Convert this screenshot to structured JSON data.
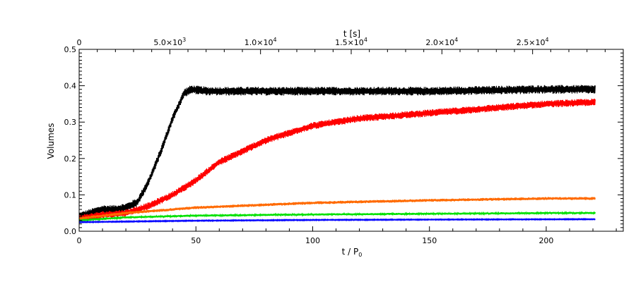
{
  "chart_data": {
    "type": "line",
    "title": "",
    "xlabel": "t / P",
    "xlabel_subscript": "0",
    "ylabel": "Volumes",
    "top_xlabel": "t [s]",
    "xlim": [
      0,
      233
    ],
    "ylim": [
      0,
      0.5
    ],
    "top_xlim": [
      0,
      30000
    ],
    "grid": false,
    "legend": "none",
    "x_ticks": [
      "0",
      "50",
      "100",
      "150",
      "200"
    ],
    "y_ticks": [
      "0.0",
      "0.1",
      "0.2",
      "0.3",
      "0.4",
      "0.5"
    ],
    "top_x_ticks": [
      {
        "value": 0,
        "mantissa": "0",
        "exponent": ""
      },
      {
        "value": 5000,
        "mantissa": "5.0×10",
        "exponent": "3"
      },
      {
        "value": 10000,
        "mantissa": "1.0×10",
        "exponent": "4"
      },
      {
        "value": 15000,
        "mantissa": "1.5×10",
        "exponent": "4"
      },
      {
        "value": 20000,
        "mantissa": "2.0×10",
        "exponent": "4"
      },
      {
        "value": 25000,
        "mantissa": "2.5×10",
        "exponent": "4"
      }
    ],
    "series": [
      {
        "color": "#000000",
        "x": [
          0,
          5,
          10,
          15,
          20,
          25,
          30,
          35,
          40,
          45,
          48,
          55,
          60,
          100,
          150,
          200,
          221
        ],
        "y": [
          0.04,
          0.05,
          0.06,
          0.06,
          0.065,
          0.08,
          0.14,
          0.22,
          0.31,
          0.38,
          0.39,
          0.385,
          0.385,
          0.385,
          0.385,
          0.39,
          0.39
        ],
        "noise": 0.012
      },
      {
        "color": "#ff0000",
        "x": [
          0,
          10,
          20,
          30,
          40,
          50,
          60,
          70,
          80,
          90,
          100,
          120,
          140,
          160,
          180,
          200,
          221
        ],
        "y": [
          0.035,
          0.045,
          0.05,
          0.07,
          0.1,
          0.14,
          0.19,
          0.22,
          0.25,
          0.27,
          0.29,
          0.31,
          0.32,
          0.33,
          0.34,
          0.35,
          0.355
        ],
        "noise": 0.01
      },
      {
        "color": "#ff6a00",
        "x": [
          0,
          20,
          50,
          100,
          150,
          200,
          221
        ],
        "y": [
          0.035,
          0.05,
          0.065,
          0.078,
          0.085,
          0.09,
          0.09
        ],
        "noise": 0.004
      },
      {
        "color": "#00e000",
        "x": [
          0,
          20,
          50,
          100,
          150,
          200,
          221
        ],
        "y": [
          0.03,
          0.038,
          0.043,
          0.046,
          0.048,
          0.05,
          0.05
        ],
        "noise": 0.003
      },
      {
        "color": "#0000ff",
        "x": [
          0,
          50,
          100,
          150,
          221
        ],
        "y": [
          0.025,
          0.029,
          0.031,
          0.032,
          0.033
        ],
        "noise": 0.0015
      }
    ]
  }
}
